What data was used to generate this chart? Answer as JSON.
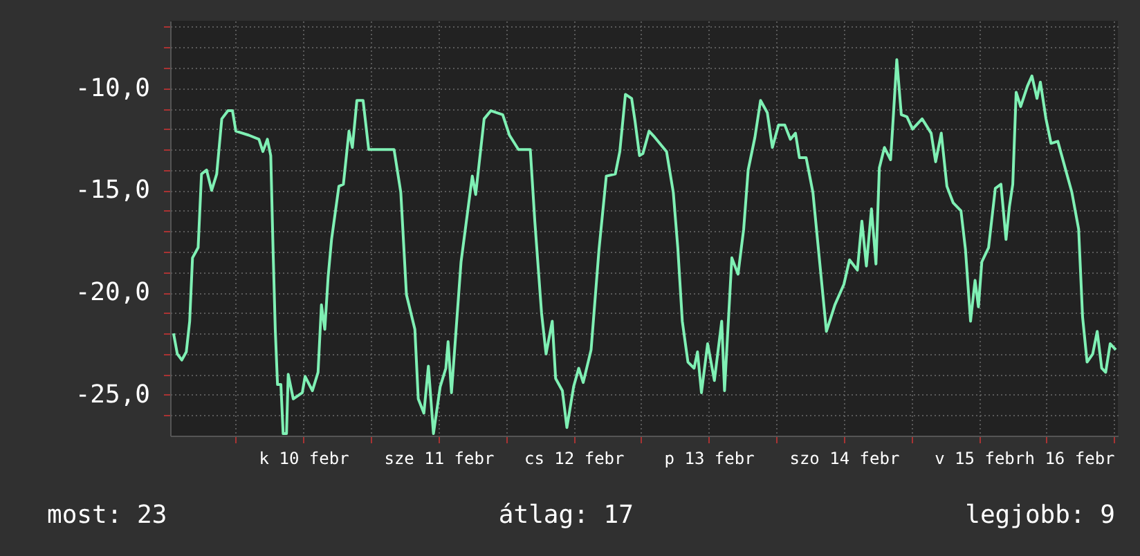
{
  "chart_data": {
    "type": "line",
    "x": [
      "--02-09T12:56",
      "--02-09T13:36",
      "--02-09T14:24",
      "--02-09T15:12",
      "--02-09T15:48",
      "--02-09T16:18",
      "--02-09T17:18",
      "--02-09T17:54",
      "--02-09T18:48",
      "--02-09T19:42",
      "--02-09T20:36",
      "--02-09T21:30",
      "--02-09T22:36",
      "--02-09T23:24",
      "--02-10T00:00",
      "--02-10T02:18",
      "--02-10T04:06",
      "--02-10T04:48",
      "--02-10T05:36",
      "--02-10T06:12",
      "--02-10T06:36",
      "--02-10T07:00",
      "--02-10T07:24",
      "--02-10T08:00",
      "--02-10T08:24",
      "--02-10T09:00",
      "--02-10T09:18",
      "--02-10T10:12",
      "--02-10T11:48",
      "--02-10T12:18",
      "--02-10T13:36",
      "--02-10T14:36",
      "--02-10T15:12",
      "--02-10T15:48",
      "--02-10T16:24",
      "--02-10T17:00",
      "--02-10T18:18",
      "--02-10T19:06",
      "--02-10T20:06",
      "--02-10T20:42",
      "--02-10T21:30",
      "--02-10T22:36",
      "--02-10T23:36",
      "--02-11T04:06",
      "--02-11T05:18",
      "--02-11T06:18",
      "--02-11T07:48",
      "--02-11T08:24",
      "--02-11T09:24",
      "--02-11T10:12",
      "--02-11T11:06",
      "--02-11T12:18",
      "--02-11T13:18",
      "--02-11T13:42",
      "--02-11T14:18",
      "--02-11T16:00",
      "--02-11T18:00",
      "--02-11T18:36",
      "--02-11T20:06",
      "--02-11T21:18",
      "--02-11T23:24",
      "--02-12T00:36",
      "--02-12T02:12",
      "--02-12T04:18",
      "--02-12T05:06",
      "--02-12T06:18",
      "--02-12T07:06",
      "--02-12T08:12",
      "--02-12T08:48",
      "--02-12T10:00",
      "--02-12T10:48",
      "--02-12T12:00",
      "--02-12T12:54",
      "--02-12T13:42",
      "--02-12T15:06",
      "--02-12T16:30",
      "--02-12T17:48",
      "--02-12T19:24",
      "--02-12T20:12",
      "--02-12T21:12",
      "--02-12T22:18",
      "--02-12T22:54",
      "--02-12T23:42",
      "--02-13T00:18",
      "--02-13T01:24",
      "--02-13T02:24",
      "--02-13T04:30",
      "--02-13T05:42",
      "--02-13T06:30",
      "--02-13T07:18",
      "--02-13T08:18",
      "--02-13T09:24",
      "--02-13T10:00",
      "--02-13T10:42",
      "--02-13T11:48",
      "--02-13T13:00",
      "--02-13T14:18",
      "--02-13T14:48",
      "--02-13T16:06",
      "--02-13T17:12",
      "--02-13T18:12",
      "--02-13T19:00",
      "--02-13T20:12",
      "--02-13T21:12",
      "--02-13T22:24",
      "--02-13T23:18",
      "--02-14T00:24",
      "--02-14T01:30",
      "--02-14T02:30",
      "--02-14T03:24",
      "--02-14T04:06",
      "--02-14T05:18",
      "--02-14T06:30",
      "--02-14T07:42",
      "--02-14T08:54",
      "--02-14T10:24",
      "--02-14T12:00",
      "--02-14T13:00",
      "--02-14T14:24",
      "--02-14T15:12",
      "--02-14T16:00",
      "--02-14T16:54",
      "--02-14T17:42",
      "--02-14T18:18",
      "--02-14T19:12",
      "--02-14T20:18",
      "--02-14T20:48",
      "--02-14T21:24",
      "--02-14T22:12",
      "--02-14T23:12",
      "--02-15T00:12",
      "--02-15T01:54",
      "--02-15T03:30",
      "--02-15T04:18",
      "--02-15T05:18",
      "--02-15T06:18",
      "--02-15T07:24",
      "--02-15T08:48",
      "--02-15T09:36",
      "--02-15T10:30",
      "--02-15T11:18",
      "--02-15T11:54",
      "--02-15T12:30",
      "--02-15T13:42",
      "--02-15T14:54",
      "--02-15T15:54",
      "--02-15T16:48",
      "--02-15T17:24",
      "--02-15T18:00",
      "--02-15T18:36",
      "--02-15T19:24",
      "--02-15T20:36",
      "--02-15T21:24",
      "--02-15T22:18",
      "--02-15T22:54",
      "--02-15T23:54",
      "--02-16T00:48",
      "--02-16T02:00",
      "--02-16T03:12",
      "--02-16T04:30",
      "--02-16T05:42",
      "--02-16T06:24",
      "--02-16T07:12",
      "--02-16T08:12",
      "--02-16T09:00",
      "--02-16T09:48",
      "--02-16T10:30",
      "--02-16T11:18",
      "--02-16T12:18"
    ],
    "series": [
      {
        "color": "#7ff0b4",
        "values": [
          -22.0,
          -23.0,
          -23.3,
          -22.9,
          -21.4,
          -18.3,
          -17.8,
          -14.2,
          -14.0,
          -15.0,
          -14.2,
          -11.5,
          -11.1,
          -11.1,
          -12.1,
          -12.3,
          -12.5,
          -13.1,
          -12.5,
          -13.3,
          -17.8,
          -21.8,
          -24.5,
          -24.5,
          -26.9,
          -26.9,
          -24.0,
          -25.2,
          -24.9,
          -24.1,
          -24.8,
          -23.9,
          -20.6,
          -21.8,
          -19.2,
          -17.4,
          -14.8,
          -14.7,
          -12.1,
          -12.9,
          -10.6,
          -10.6,
          -13.0,
          -13.0,
          -15.1,
          -20.1,
          -21.8,
          -25.2,
          -25.9,
          -23.6,
          -26.9,
          -24.6,
          -23.7,
          -22.4,
          -24.9,
          -18.5,
          -14.3,
          -15.2,
          -11.5,
          -11.1,
          -11.3,
          -12.3,
          -13.0,
          -13.0,
          -16.5,
          -21.0,
          -23.0,
          -21.4,
          -24.2,
          -24.8,
          -26.6,
          -24.6,
          -23.7,
          -24.4,
          -22.8,
          -17.9,
          -14.3,
          -14.2,
          -13.1,
          -10.3,
          -10.5,
          -11.6,
          -13.3,
          -13.2,
          -12.1,
          -12.4,
          -13.1,
          -15.1,
          -17.8,
          -21.4,
          -23.4,
          -23.7,
          -22.9,
          -24.9,
          -22.5,
          -24.3,
          -21.4,
          -24.8,
          -18.3,
          -19.1,
          -16.9,
          -14.0,
          -12.4,
          -10.6,
          -11.2,
          -12.9,
          -11.8,
          -11.8,
          -12.5,
          -12.2,
          -13.4,
          -13.4,
          -15.1,
          -18.5,
          -21.9,
          -20.6,
          -19.6,
          -18.4,
          -18.9,
          -16.5,
          -18.7,
          -15.9,
          -18.6,
          -13.9,
          -12.9,
          -13.5,
          -11.3,
          -8.6,
          -11.3,
          -11.4,
          -12.0,
          -11.5,
          -12.2,
          -13.6,
          -12.2,
          -14.8,
          -15.6,
          -16.0,
          -17.9,
          -21.4,
          -19.4,
          -20.7,
          -18.5,
          -17.8,
          -14.9,
          -14.7,
          -17.4,
          -15.8,
          -14.7,
          -10.2,
          -10.9,
          -9.9,
          -9.4,
          -10.5,
          -9.7,
          -11.5,
          -12.7,
          -12.6,
          -13.8,
          -15.1,
          -16.9,
          -21.2,
          -23.4,
          -23.0,
          -21.9,
          -23.7,
          -23.9,
          -22.5,
          -22.8
        ]
      }
    ],
    "xlim": [
      "--02-09T12:20",
      "--02-16T12:40"
    ],
    "xticks": [
      {
        "value": "--02-10T00:00",
        "label": null
      },
      {
        "value": "--02-10T12:00",
        "label": "k 10 febr"
      },
      {
        "value": "--02-11T00:00",
        "label": null
      },
      {
        "value": "--02-11T12:00",
        "label": "sze 11 febr"
      },
      {
        "value": "--02-12T00:00",
        "label": null
      },
      {
        "value": "--02-12T12:00",
        "label": "cs 12 febr"
      },
      {
        "value": "--02-13T00:00",
        "label": null
      },
      {
        "value": "--02-13T12:00",
        "label": "p 13 febr"
      },
      {
        "value": "--02-14T00:00",
        "label": null
      },
      {
        "value": "--02-14T12:00",
        "label": "szo 14 febr"
      },
      {
        "value": "--02-15T00:00",
        "label": null
      },
      {
        "value": "--02-15T12:00",
        "label": "v 15 febr"
      },
      {
        "value": "--02-16T00:00",
        "label": null
      },
      {
        "value": "--02-16T12:00",
        "label": "h 16 febr"
      }
    ],
    "ylim": [
      -27,
      -6.7
    ],
    "yticks": [
      {
        "value": -26,
        "label": null
      },
      {
        "value": -25,
        "label": "-25,0"
      },
      {
        "value": -24,
        "label": null
      },
      {
        "value": -23,
        "label": null
      },
      {
        "value": -22,
        "label": null
      },
      {
        "value": -21,
        "label": null
      },
      {
        "value": -20,
        "label": "-20,0"
      },
      {
        "value": -19,
        "label": null
      },
      {
        "value": -18,
        "label": null
      },
      {
        "value": -17,
        "label": null
      },
      {
        "value": -16,
        "label": null
      },
      {
        "value": -15,
        "label": "-15,0"
      },
      {
        "value": -14,
        "label": null
      },
      {
        "value": -13,
        "label": null
      },
      {
        "value": -12,
        "label": null
      },
      {
        "value": -11,
        "label": null
      },
      {
        "value": -10,
        "label": "-10,0"
      },
      {
        "value": -9,
        "label": null
      },
      {
        "value": -8,
        "label": null
      },
      {
        "value": -7,
        "label": null
      }
    ],
    "grid": true,
    "annotations": [
      "most: 23",
      "átlag: 17",
      "legjobb: 9"
    ]
  }
}
